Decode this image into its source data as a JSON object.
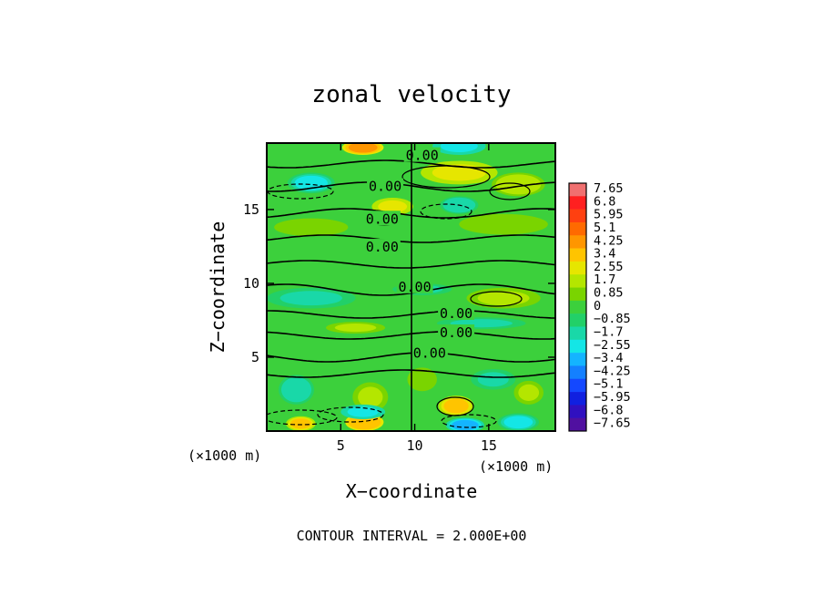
{
  "chart_data": {
    "type": "heatmap",
    "title": "zonal velocity",
    "xlabel": "X−coordinate",
    "ylabel": "Z−coordinate",
    "x_unit_label": "(×1000 m)",
    "x_unit_label_right": "(×1000 m)",
    "xlim": [
      0,
      19.5
    ],
    "ylim": [
      0,
      19.5
    ],
    "x_ticks": [
      5,
      10,
      15
    ],
    "y_ticks": [
      5,
      10,
      15
    ],
    "x_tick_labels": [
      "5",
      "10",
      "15"
    ],
    "y_tick_labels": [
      "5",
      "10",
      "15"
    ],
    "colorbar": {
      "levels": [
        "7.65",
        "6.8",
        "5.95",
        "5.1",
        "4.25",
        "3.4",
        "2.55",
        "1.7",
        "0.85",
        "0",
        "−0.85",
        "−1.7",
        "−2.55",
        "−3.4",
        "−4.25",
        "−5.1",
        "−5.95",
        "−6.8",
        "−7.65"
      ],
      "values": [
        7.65,
        6.8,
        5.95,
        5.1,
        4.25,
        3.4,
        2.55,
        1.7,
        0.85,
        0,
        -0.85,
        -1.7,
        -2.55,
        -3.4,
        -4.25,
        -5.1,
        -5.95,
        -6.8,
        -7.65
      ],
      "colors": [
        "#f07070",
        "#ff2020",
        "#ff4010",
        "#ff6a00",
        "#ff9600",
        "#ffc400",
        "#e6e600",
        "#b4e600",
        "#7ad400",
        "#3cd03c",
        "#22d068",
        "#19d8a8",
        "#14e6e6",
        "#14b4ff",
        "#1480ff",
        "#1448ff",
        "#1020e0",
        "#3010c0",
        "#5010a0"
      ]
    },
    "contour_labels": [
      {
        "x": 10.5,
        "z": 18.6,
        "text": "0.00"
      },
      {
        "x": 8.0,
        "z": 16.5,
        "text": "0.00"
      },
      {
        "x": 7.8,
        "z": 14.3,
        "text": "0.00"
      },
      {
        "x": 7.8,
        "z": 12.4,
        "text": "0.00"
      },
      {
        "x": 10.0,
        "z": 9.7,
        "text": "0.00"
      },
      {
        "x": 12.8,
        "z": 7.9,
        "text": "0.00"
      },
      {
        "x": 12.8,
        "z": 6.6,
        "text": "0.00"
      },
      {
        "x": 11.0,
        "z": 5.2,
        "text": "0.00"
      }
    ],
    "features": [
      {
        "x": 6.5,
        "z": 19.2,
        "value": 4.0,
        "rx": 1.4,
        "rz": 0.5
      },
      {
        "x": 13.0,
        "z": 19.3,
        "value": -2.5,
        "rx": 1.8,
        "rz": 0.6
      },
      {
        "x": 3.0,
        "z": 16.8,
        "value": -2.2,
        "rx": 1.6,
        "rz": 0.7
      },
      {
        "x": 13.0,
        "z": 17.5,
        "value": 2.6,
        "rx": 2.6,
        "rz": 0.8
      },
      {
        "x": 17.0,
        "z": 16.7,
        "value": 1.8,
        "rx": 1.8,
        "rz": 0.8
      },
      {
        "x": 13.0,
        "z": 15.3,
        "value": -1.9,
        "rx": 1.3,
        "rz": 0.6
      },
      {
        "x": 8.5,
        "z": 15.2,
        "value": 2.3,
        "rx": 1.4,
        "rz": 0.6
      },
      {
        "x": 3.0,
        "z": 13.8,
        "value": 1.1,
        "rx": 2.5,
        "rz": 0.6
      },
      {
        "x": 16.0,
        "z": 14.0,
        "value": 1.1,
        "rx": 3.0,
        "rz": 0.7
      },
      {
        "x": 3.0,
        "z": 9.0,
        "value": -1.4,
        "rx": 3.0,
        "rz": 0.7
      },
      {
        "x": 10.5,
        "z": 9.6,
        "value": -1.6,
        "rx": 2.0,
        "rz": 0.4
      },
      {
        "x": 16.0,
        "z": 9.0,
        "value": 1.5,
        "rx": 2.5,
        "rz": 0.7
      },
      {
        "x": 6.0,
        "z": 7.0,
        "value": 1.3,
        "rx": 2.0,
        "rz": 0.4
      },
      {
        "x": 14.5,
        "z": 7.3,
        "value": -1.3,
        "rx": 3.0,
        "rz": 0.4
      },
      {
        "x": 2.0,
        "z": 2.8,
        "value": -2.0,
        "rx": 1.2,
        "rz": 1.0
      },
      {
        "x": 7.0,
        "z": 2.3,
        "value": 1.6,
        "rx": 1.2,
        "rz": 1.0
      },
      {
        "x": 6.6,
        "z": 0.6,
        "value": 3.8,
        "rx": 1.3,
        "rz": 0.6
      },
      {
        "x": 2.3,
        "z": 0.5,
        "value": 3.0,
        "rx": 1.0,
        "rz": 0.5
      },
      {
        "x": 6.5,
        "z": 1.3,
        "value": -2.4,
        "rx": 1.5,
        "rz": 0.5
      },
      {
        "x": 12.8,
        "z": 1.7,
        "value": 3.2,
        "rx": 1.2,
        "rz": 0.7
      },
      {
        "x": 13.4,
        "z": 0.4,
        "value": -3.0,
        "rx": 1.3,
        "rz": 0.5
      },
      {
        "x": 17.0,
        "z": 0.6,
        "value": -2.2,
        "rx": 1.4,
        "rz": 0.6
      },
      {
        "x": 17.7,
        "z": 2.6,
        "value": 1.6,
        "rx": 1.0,
        "rz": 0.8
      },
      {
        "x": 15.3,
        "z": 3.5,
        "value": -1.3,
        "rx": 1.5,
        "rz": 0.7
      },
      {
        "x": 10.5,
        "z": 3.5,
        "value": 1.0,
        "rx": 1.0,
        "rz": 0.8
      }
    ],
    "grid": false,
    "legend": "right"
  },
  "footer": "CONTOUR INTERVAL = 2.000E+00"
}
